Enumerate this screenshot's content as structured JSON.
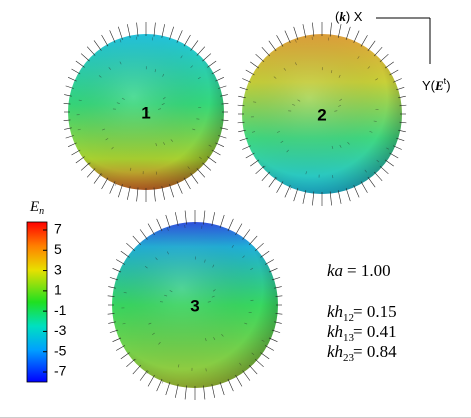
{
  "spheres": [
    {
      "label": "1"
    },
    {
      "label": "2"
    },
    {
      "label": "3"
    }
  ],
  "colorbar": {
    "title": "E",
    "title_subscript": "n",
    "ticks": [
      7,
      5,
      3,
      1,
      -1,
      -3,
      -5,
      -7
    ],
    "range": [
      -7,
      7
    ]
  },
  "axes": {
    "x_open": "(",
    "x_vector": "k",
    "x_close": ") X",
    "y_prefix": "Y(",
    "y_vector": "E",
    "y_superscript": "t",
    "y_close": ")"
  },
  "parameters": [
    {
      "symbol": "ka",
      "subscript": "",
      "value": "= 1.00"
    },
    {
      "symbol": "kh",
      "subscript": "12",
      "value": "= 0.15"
    },
    {
      "symbol": "kh",
      "subscript": "13",
      "value": "= 0.41"
    },
    {
      "symbol": "kh",
      "subscript": "23",
      "value": "= 0.84"
    }
  ]
}
